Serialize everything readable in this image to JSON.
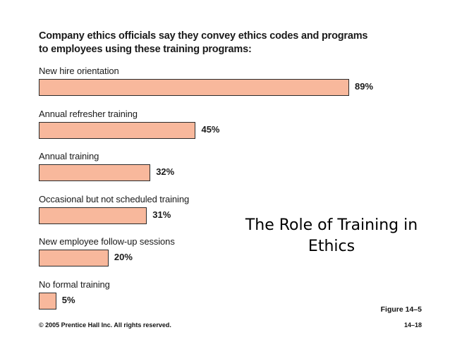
{
  "chart_data": {
    "type": "bar",
    "orientation": "horizontal",
    "title": "Company ethics officials say they convey ethics codes and programs to employees using these training programs:",
    "categories": [
      "New hire orientation",
      "Annual refresher training",
      "Annual training",
      "Occasional but not scheduled training",
      "New employee follow-up sessions",
      "No formal training"
    ],
    "values": [
      89,
      45,
      32,
      31,
      20,
      5
    ],
    "value_labels": [
      "89%",
      "45%",
      "32%",
      "31%",
      "20%",
      "5%"
    ],
    "unit": "%",
    "xlim": [
      0,
      100
    ],
    "grid": false,
    "bar_color": "#f8b89c"
  },
  "slide": {
    "title": "The Role of Training in Ethics",
    "figure_label": "Figure 14–5",
    "copyright": "© 2005 Prentice Hall Inc. All rights reserved.",
    "page_number": "14–18"
  }
}
